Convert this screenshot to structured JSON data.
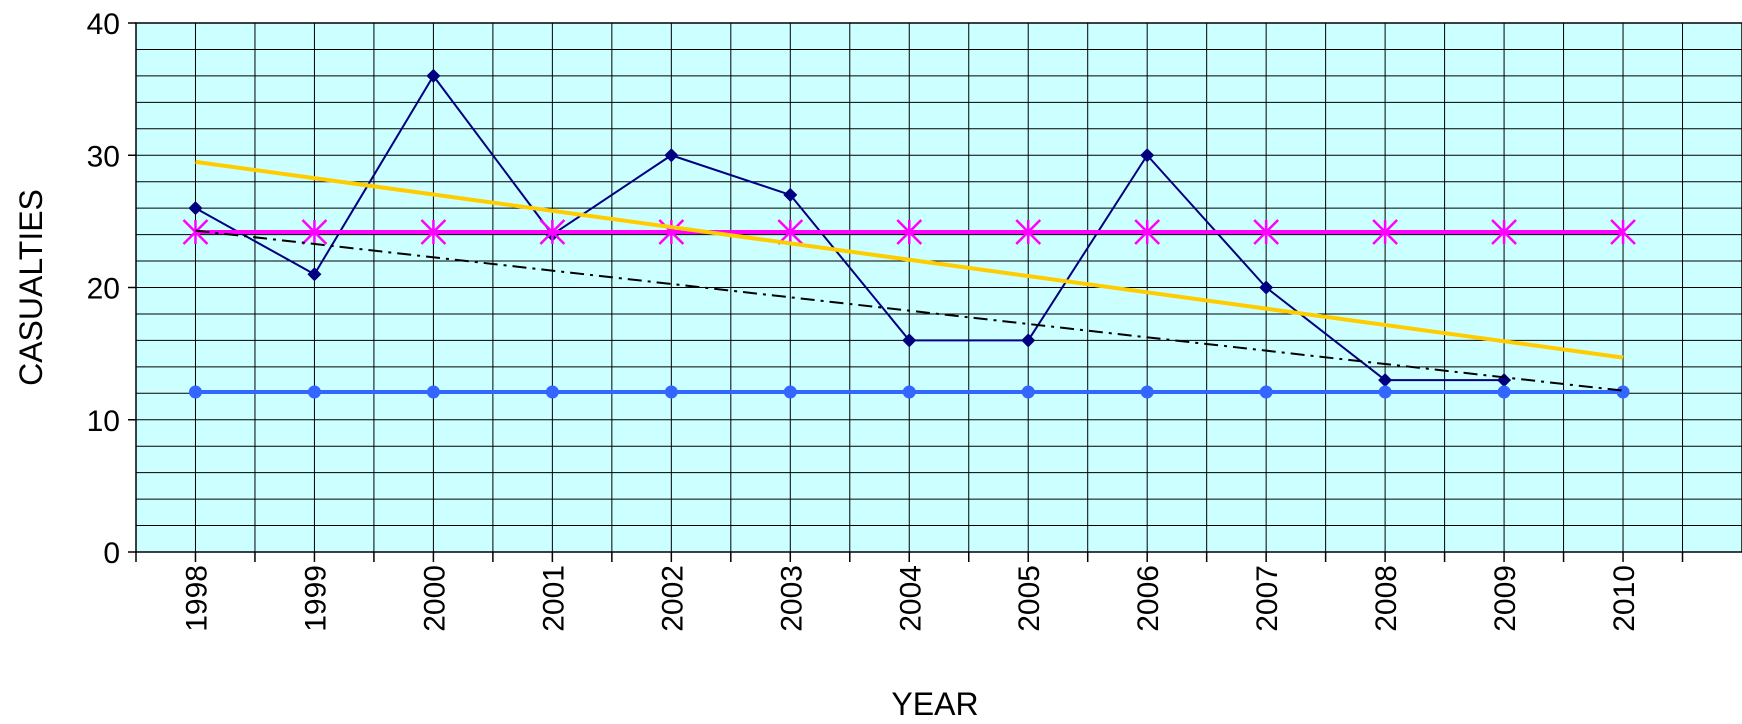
{
  "chart_data": {
    "type": "line",
    "xlabel": "YEAR",
    "ylabel": "CASUALTIES",
    "categories": [
      "1998",
      "1999",
      "2000",
      "2001",
      "2002",
      "2003",
      "2004",
      "2005",
      "2006",
      "2007",
      "2008",
      "2009",
      "2010"
    ],
    "ylim": [
      0,
      40
    ],
    "y_ticks": [
      "0",
      "10",
      "20",
      "30",
      "40"
    ],
    "grid": true,
    "legend": "none",
    "plot_background": "#ccffff",
    "series": [
      {
        "values": [
          26,
          21,
          36,
          24,
          30,
          27,
          16,
          16,
          30,
          20,
          13,
          13,
          null
        ],
        "color": "#000080",
        "marker": "diamond",
        "style": "solid"
      },
      {
        "values": [
          24.2,
          24.2,
          24.2,
          24.2,
          24.2,
          24.2,
          24.2,
          24.2,
          24.2,
          24.2,
          24.2,
          24.2,
          24.2
        ],
        "color": "#ff00ff",
        "marker": "asterisk",
        "style": "solid"
      },
      {
        "values": [
          12.1,
          12.1,
          12.1,
          12.1,
          12.1,
          12.1,
          12.1,
          12.1,
          12.1,
          12.1,
          12.1,
          12.1,
          12.1
        ],
        "color": "#3366ff",
        "marker": "circle",
        "style": "solid"
      },
      {
        "values": [
          29.5,
          null,
          null,
          null,
          null,
          null,
          null,
          null,
          null,
          null,
          null,
          null,
          14.7
        ],
        "color": "#ffcc00",
        "marker": "none",
        "style": "solid"
      },
      {
        "values": [
          24.3,
          null,
          null,
          null,
          null,
          null,
          null,
          null,
          null,
          null,
          null,
          null,
          12.2
        ],
        "color": "#000000",
        "marker": "none",
        "style": "dash-dot"
      }
    ]
  }
}
